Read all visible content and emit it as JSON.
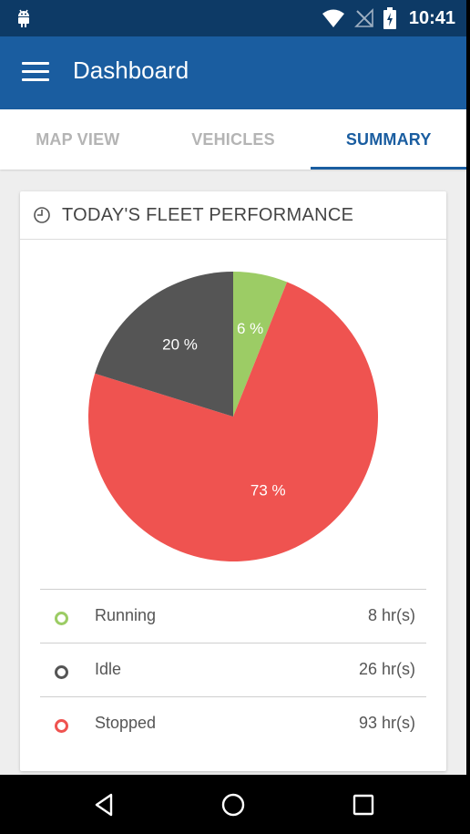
{
  "status_bar": {
    "time": "10:41",
    "icons": [
      "android-icon",
      "wifi-icon",
      "no-signal-icon",
      "battery-charging-icon"
    ]
  },
  "app_bar": {
    "title": "Dashboard",
    "menu_icon": "menu-icon"
  },
  "tabs": [
    {
      "label": "MAP VIEW",
      "active": false
    },
    {
      "label": "VEHICLES",
      "active": false
    },
    {
      "label": "SUMMARY",
      "active": true
    }
  ],
  "card": {
    "title": "TODAY'S FLEET PERFORMANCE",
    "icon": "clock-icon"
  },
  "chart_data": {
    "type": "pie",
    "title": "",
    "slices": [
      {
        "label": "Running",
        "value": 6,
        "display": "6 %",
        "color": "#9ccc65"
      },
      {
        "label": "Stopped",
        "value": 73,
        "display": "73 %",
        "color": "#ef5350"
      },
      {
        "label": "Idle",
        "value": 20,
        "display": "20 %",
        "color": "#555555"
      }
    ]
  },
  "legend": [
    {
      "name": "Running",
      "value": "8 hr(s)",
      "color": "#9ccc65"
    },
    {
      "name": "Idle",
      "value": "26 hr(s)",
      "color": "#555555"
    },
    {
      "name": "Stopped",
      "value": "93 hr(s)",
      "color": "#ef5350"
    }
  ],
  "nav": {
    "icons": [
      "back-icon",
      "home-icon",
      "recents-icon"
    ]
  }
}
